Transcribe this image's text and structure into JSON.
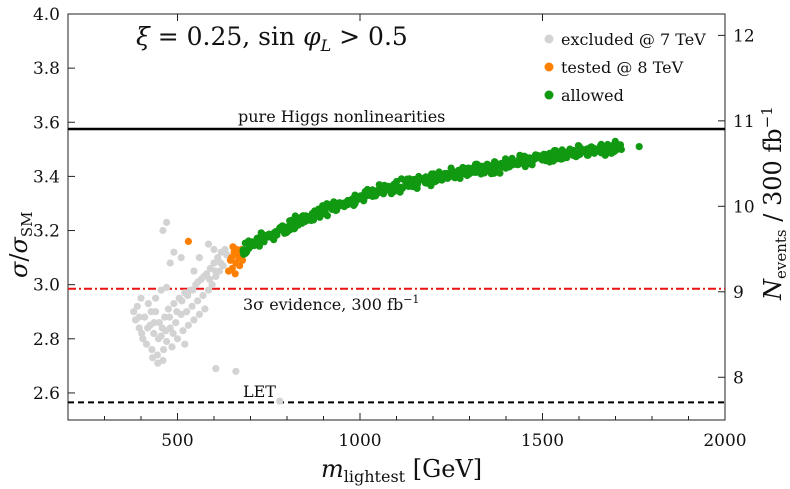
{
  "chart_data": {
    "type": "scatter",
    "title": "ξ = 0.25, sin φ_L > 0.5",
    "title_parts": {
      "xi": "ξ",
      "eq1": " = 0.25, sin ",
      "phi": "φ",
      "sub": "L",
      "cond": " > 0.5"
    },
    "xlabel": {
      "main": "m",
      "sub": "lightest",
      "unit": " [GeV]"
    },
    "ylabel": {
      "sigma": "σ",
      "slash": "/",
      "sigma2": "σ",
      "sub": "SM"
    },
    "y2label": {
      "main": "N",
      "sub": "events",
      "unit": " / 300 fb",
      "sup": "−1"
    },
    "xlim": [
      200,
      2000
    ],
    "ylim": [
      2.5,
      4.0
    ],
    "y2lim": [
      7.5,
      12.25
    ],
    "xticks": [
      "500",
      "1000",
      "1500",
      "2000"
    ],
    "xtick_values": [
      500,
      1000,
      1500,
      2000
    ],
    "yticks": [
      "2.6",
      "2.8",
      "3.0",
      "3.2",
      "3.4",
      "3.6",
      "3.8",
      "4.0"
    ],
    "ytick_values": [
      2.6,
      2.8,
      3.0,
      3.2,
      3.4,
      3.6,
      3.8,
      4.0
    ],
    "y2ticks": [
      "8",
      "9",
      "10",
      "11",
      "12"
    ],
    "y2tick_values": [
      8,
      9,
      10,
      11,
      12
    ],
    "legend": [
      {
        "label": "excluded @ 7 TeV",
        "color": "#d3d3d3"
      },
      {
        "label": "tested @ 8 TeV",
        "color": "#ff8000"
      },
      {
        "label": "allowed",
        "color": "#119911"
      }
    ],
    "reference_lines": [
      {
        "label": "pure Higgs nonlinearities",
        "y": 3.575,
        "style": "solid",
        "color": "#000000"
      },
      {
        "label": "3σ evidence, 300 fb",
        "label_sup": "−1",
        "y": 2.985,
        "style": "dash-dot",
        "color": "#ee1111"
      },
      {
        "label": "LET",
        "y": 2.565,
        "style": "dashed",
        "color": "#000000"
      }
    ],
    "series": [
      {
        "name": "excluded @ 7 TeV",
        "color": "#d3d3d3",
        "points": [
          [
            380,
            2.9
          ],
          [
            385,
            2.87
          ],
          [
            390,
            2.92
          ],
          [
            395,
            2.84
          ],
          [
            400,
            2.95
          ],
          [
            405,
            2.8
          ],
          [
            410,
            2.88
          ],
          [
            415,
            2.78
          ],
          [
            420,
            2.93
          ],
          [
            425,
            2.85
          ],
          [
            430,
            2.76
          ],
          [
            435,
            2.82
          ],
          [
            440,
            2.9
          ],
          [
            445,
            2.74
          ],
          [
            450,
            2.86
          ],
          [
            455,
            2.81
          ],
          [
            460,
            2.72
          ],
          [
            465,
            2.88
          ],
          [
            470,
            2.79
          ],
          [
            475,
            2.91
          ],
          [
            480,
            2.84
          ],
          [
            485,
            2.77
          ],
          [
            490,
            2.93
          ],
          [
            495,
            2.86
          ],
          [
            500,
            2.8
          ],
          [
            505,
            2.95
          ],
          [
            510,
            2.89
          ],
          [
            515,
            2.83
          ],
          [
            520,
            2.97
          ],
          [
            525,
            2.9
          ],
          [
            530,
            2.85
          ],
          [
            535,
            2.98
          ],
          [
            540,
            2.92
          ],
          [
            545,
            2.87
          ],
          [
            550,
            3.0
          ],
          [
            555,
            2.94
          ],
          [
            560,
            2.89
          ],
          [
            565,
            3.02
          ],
          [
            570,
            2.96
          ],
          [
            575,
            2.91
          ],
          [
            580,
            3.04
          ],
          [
            585,
            2.98
          ],
          [
            590,
            3.06
          ],
          [
            595,
            3.0
          ],
          [
            600,
            3.08
          ],
          [
            605,
            3.03
          ],
          [
            610,
            3.1
          ],
          [
            615,
            3.05
          ],
          [
            620,
            3.12
          ],
          [
            625,
            3.07
          ],
          [
            630,
            3.13
          ],
          [
            440,
            2.95
          ],
          [
            455,
            2.98
          ],
          [
            470,
            2.99
          ],
          [
            480,
            3.08
          ],
          [
            490,
            3.12
          ],
          [
            470,
            3.23
          ],
          [
            460,
            3.2
          ],
          [
            510,
            3.1
          ],
          [
            545,
            3.05
          ],
          [
            560,
            3.1
          ],
          [
            585,
            3.15
          ],
          [
            600,
            3.13
          ],
          [
            395,
            2.88
          ],
          [
            402,
            2.82
          ],
          [
            418,
            2.84
          ],
          [
            428,
            2.9
          ],
          [
            436,
            2.86
          ],
          [
            448,
            2.8
          ],
          [
            458,
            2.84
          ],
          [
            468,
            2.83
          ],
          [
            478,
            2.88
          ],
          [
            488,
            2.82
          ],
          [
            498,
            2.9
          ],
          [
            512,
            2.94
          ],
          [
            528,
            2.96
          ],
          [
            542,
            2.98
          ],
          [
            556,
            3.01
          ],
          [
            572,
            3.03
          ],
          [
            588,
            3.02
          ],
          [
            604,
            3.05
          ],
          [
            618,
            3.08
          ],
          [
            635,
            3.11
          ],
          [
            432,
            2.73
          ],
          [
            446,
            2.71
          ],
          [
            462,
            2.76
          ],
          [
            520,
            2.78
          ],
          [
            605,
            2.69
          ],
          [
            660,
            2.68
          ],
          [
            780,
            2.57
          ]
        ]
      },
      {
        "name": "tested @ 8 TeV",
        "color": "#ff8000",
        "points": [
          [
            640,
            3.05
          ],
          [
            645,
            3.09
          ],
          [
            650,
            3.06
          ],
          [
            655,
            3.12
          ],
          [
            660,
            3.08
          ],
          [
            665,
            3.11
          ],
          [
            670,
            3.07
          ],
          [
            675,
            3.13
          ],
          [
            648,
            3.1
          ],
          [
            658,
            3.04
          ],
          [
            668,
            3.1
          ],
          [
            678,
            3.09
          ],
          [
            652,
            3.14
          ],
          [
            662,
            3.13
          ],
          [
            672,
            3.12
          ],
          [
            530,
            3.16
          ]
        ]
      },
      {
        "name": "allowed",
        "color": "#119911",
        "trend": [
          [
            680,
            3.13
          ],
          [
            760,
            3.19
          ],
          [
            860,
            3.25
          ],
          [
            960,
            3.3
          ],
          [
            1060,
            3.35
          ],
          [
            1160,
            3.38
          ],
          [
            1260,
            3.41
          ],
          [
            1360,
            3.43
          ],
          [
            1460,
            3.46
          ],
          [
            1560,
            3.48
          ],
          [
            1660,
            3.5
          ],
          [
            1720,
            3.51
          ]
        ],
        "x_range": [
          680,
          1720
        ],
        "count": 520,
        "spread": 0.03,
        "outliers": [
          [
            1765,
            3.51
          ]
        ]
      }
    ]
  }
}
